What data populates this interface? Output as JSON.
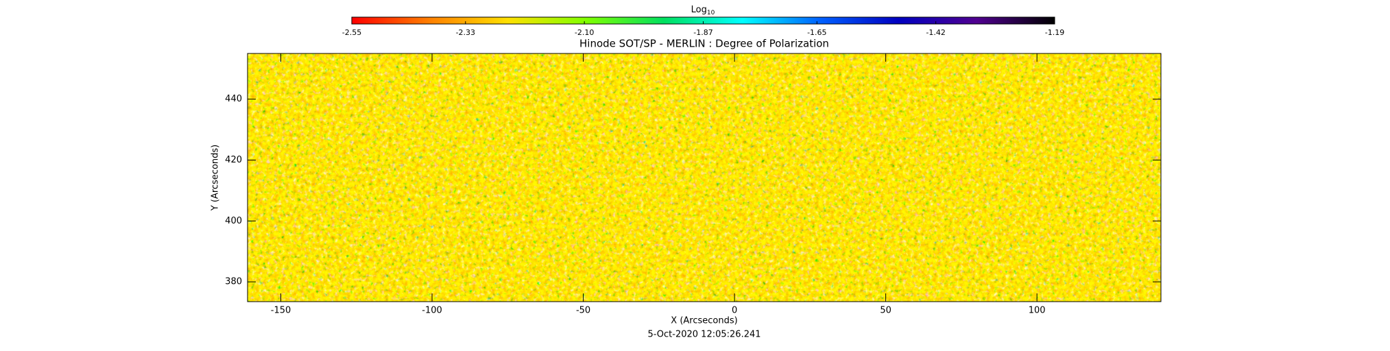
{
  "chart_data": {
    "type": "heatmap",
    "title": "Hinode SOT/SP - MERLIN : Degree of Polarization",
    "x_label": "X (Arcseconds)",
    "y_label": "Y (Arcseconds)",
    "footer": "5-Oct-2020 12:05:26.241",
    "xlim": [
      -161,
      141
    ],
    "xticks": [
      -150,
      -100,
      -50,
      0,
      50,
      100
    ],
    "ylim": [
      373.5,
      455
    ],
    "yticks": [
      380,
      400,
      420,
      440
    ],
    "colorbar_label": "Log",
    "colorbar_label_subscript": "10",
    "clim": [
      -2.55,
      -1.19
    ],
    "colorbar_ticks": [
      -2.55,
      -2.33,
      {
        "value": -2.1,
        "label": "-2.10"
      },
      -1.87,
      -1.65,
      -1.42,
      -1.19
    ],
    "colormap": [
      "#ff0000",
      "#ff8000",
      "#ffe000",
      "#80ff00",
      "#00e060",
      "#00ffff",
      "#0060ff",
      "#0000c0",
      "#500090",
      "#000000"
    ]
  }
}
